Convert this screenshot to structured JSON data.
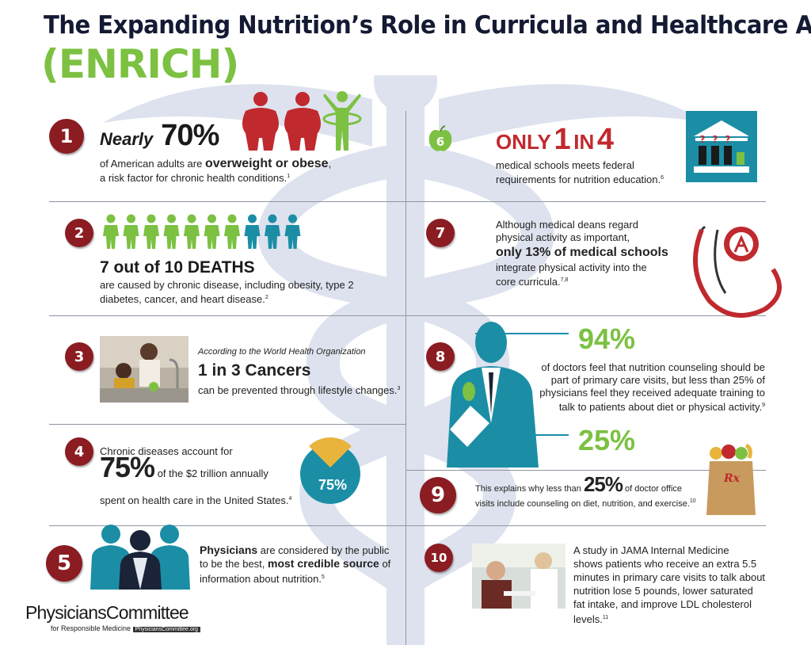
{
  "header": {
    "title": "The Expanding Nutrition’s Role in Curricula and Healthcare Act",
    "subtitle": "(ENRICH)"
  },
  "colors": {
    "navy": "#141a33",
    "green": "#7cc142",
    "maroon": "#8b1c22",
    "red": "#c0292e",
    "teal": "#1b8ea6",
    "gold": "#e8b43c",
    "caduceus": "#dde2ee"
  },
  "facts": [
    {
      "number": "1",
      "lead": "Nearly",
      "stat": "70%",
      "text_pre": "of American adults are ",
      "text_bold": "overweight or obese",
      "text_post": ",",
      "line2": "a risk factor for chronic health conditions.",
      "ref": "1"
    },
    {
      "number": "2",
      "headline": "7 out of 10 DEATHS",
      "line1": "are caused by chronic disease, including obesity, type 2",
      "line2": "diabetes, cancer, and heart disease.",
      "ref": "2"
    },
    {
      "number": "3",
      "source": "According to the World Health Organization",
      "headline": "1 in 3 Cancers",
      "line1": "can be prevented through lifestyle changes.",
      "ref": "3"
    },
    {
      "number": "4",
      "line1": "Chronic diseases account for",
      "stat": "75%",
      "text_after": "of the $2 trillion annually",
      "line2": "spent on health care in the United States.",
      "ref": "4",
      "pie_label": "75%",
      "pie_fraction": 0.75
    },
    {
      "number": "5",
      "bold1": "Physicians",
      "text1": " are considered by the public",
      "text2": "to be the best, ",
      "bold2": "most credible source",
      "text3": " of",
      "line3": "information about nutrition.",
      "ref": "5"
    },
    {
      "number": "6",
      "only": "ONLY",
      "one": "1",
      "in": "IN",
      "four": "4",
      "line1": "medical schools meets federal",
      "line2": "requirements for nutrition education.",
      "ref": "6"
    },
    {
      "number": "7",
      "line1": "Although medical deans regard",
      "line2": "physical activity as important,",
      "bold": "only 13% of medical schools",
      "line3": "integrate physical activity into the",
      "line4": "core curricula.",
      "ref": "7,8"
    },
    {
      "number": "8",
      "stat1": "94%",
      "line1": "of doctors feel that nutrition counseling should be",
      "line2": "part of primary care visits, but less than 25% of",
      "line3": "physicians feel they received adequate training to",
      "line4": "talk to patients about diet or physical activity.",
      "ref": "9",
      "stat2": "25%"
    },
    {
      "number": "9",
      "text_pre": "This explains why less than ",
      "stat": "25%",
      "text_post": " of doctor office",
      "line2": "visits include counseling on diet, nutrition, and exercise.",
      "ref": "10",
      "rx": "Rx"
    },
    {
      "number": "10",
      "line1": "A study in JAMA Internal Medicine",
      "line2": "shows patients who receive an extra 5.5",
      "line3": "minutes in primary care visits to talk about",
      "line4": "nutrition lose 5 pounds, lower saturated",
      "line5": "fat intake, and improve LDL cholesterol",
      "line6": "levels.",
      "ref": "11"
    }
  ],
  "figures": {
    "fact1_icons": [
      "overweight-person-icon",
      "overweight-person-icon",
      "active-person-hula-hoop-icon"
    ],
    "fact2_people": {
      "green": 7,
      "teal": 3
    },
    "fact6_icons": [
      "apple-icon",
      "school-building-question-icon"
    ],
    "fact7_icons": [
      "stethoscope-icon"
    ],
    "fact8_icons": [
      "doctor-silhouette-icon"
    ]
  },
  "footer": {
    "logo_main": "PhysiciansCommittee",
    "logo_sub": "for Responsible Medicine",
    "logo_url": "PhysiciansCommittee.org"
  }
}
